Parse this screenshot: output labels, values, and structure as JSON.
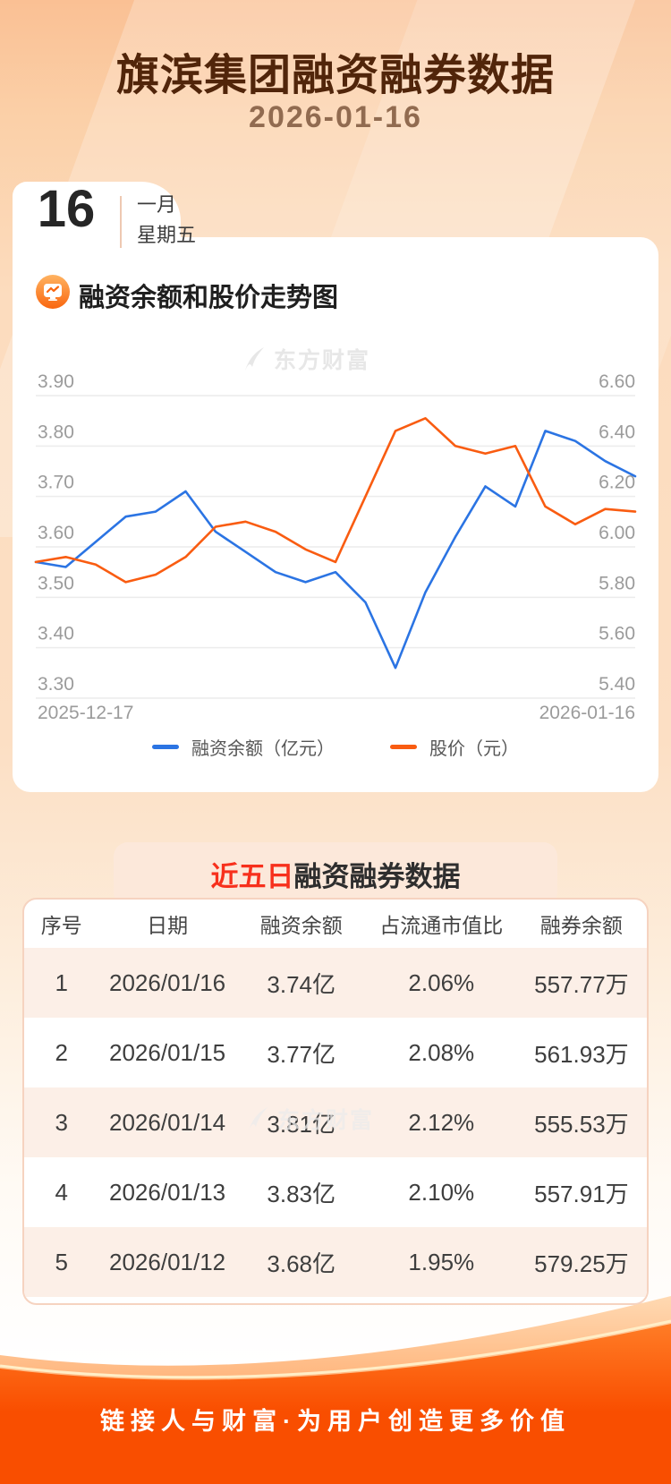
{
  "header": {
    "title": "旗滨集团融资融券数据",
    "date": "2026-01-16"
  },
  "calendar": {
    "day": "16",
    "month": "一月",
    "weekday": "星期五"
  },
  "chart_section": {
    "title": "融资余额和股价走势图"
  },
  "watermark": {
    "brand": "东方财富"
  },
  "chart_data": {
    "type": "line",
    "points": 21,
    "x_axis": {
      "start_label": "2025-12-17",
      "end_label": "2026-01-16"
    },
    "left_axis": {
      "min": 3.3,
      "max": 3.9,
      "ticks": [
        "3.90",
        "3.80",
        "3.70",
        "3.60",
        "3.50",
        "3.40",
        "3.30"
      ]
    },
    "right_axis": {
      "min": 5.4,
      "max": 6.6,
      "ticks": [
        "6.60",
        "6.40",
        "6.20",
        "6.00",
        "5.80",
        "5.60",
        "5.40"
      ]
    },
    "grid": true,
    "legend_position": "bottom",
    "series": [
      {
        "key": "margin-balance",
        "name": "融资余额（亿元）",
        "color": "#2b74e3",
        "axis": "left",
        "values": [
          3.57,
          3.56,
          3.61,
          3.66,
          3.67,
          3.71,
          3.63,
          3.59,
          3.55,
          3.53,
          3.55,
          3.49,
          3.36,
          3.51,
          3.62,
          3.72,
          3.68,
          3.83,
          3.81,
          3.77,
          3.74
        ]
      },
      {
        "key": "stock-price",
        "name": "股价（元）",
        "color": "#f95c11",
        "axis": "right",
        "values": [
          5.94,
          5.96,
          5.93,
          5.86,
          5.89,
          5.96,
          6.08,
          6.1,
          6.06,
          5.99,
          5.94,
          6.2,
          6.46,
          6.51,
          6.4,
          6.37,
          6.4,
          6.16,
          6.09,
          6.15,
          6.14
        ]
      }
    ]
  },
  "table_section": {
    "title_highlight": "近五日",
    "title_rest": "融资融券数据",
    "columns": [
      "序号",
      "日期",
      "融资余额",
      "占流通市值比",
      "融券余额"
    ],
    "rows": [
      [
        "1",
        "2026/01/16",
        "3.74亿",
        "2.06%",
        "557.77万"
      ],
      [
        "2",
        "2026/01/15",
        "3.77亿",
        "2.08%",
        "561.93万"
      ],
      [
        "3",
        "2026/01/14",
        "3.81亿",
        "2.12%",
        "555.53万"
      ],
      [
        "4",
        "2026/01/13",
        "3.83亿",
        "2.10%",
        "557.91万"
      ],
      [
        "5",
        "2026/01/12",
        "3.68亿",
        "1.95%",
        "579.25万"
      ]
    ]
  },
  "footer": {
    "slogan": "链接人与财富·为用户创造更多价值"
  },
  "colors": {
    "accent_blue": "#2b74e3",
    "accent_orange": "#f95c11",
    "highlight_red": "#f7301c",
    "footer_orange": "#f94e00",
    "banner_bg": "#fce8da",
    "row_shade": "#fcefe7"
  }
}
